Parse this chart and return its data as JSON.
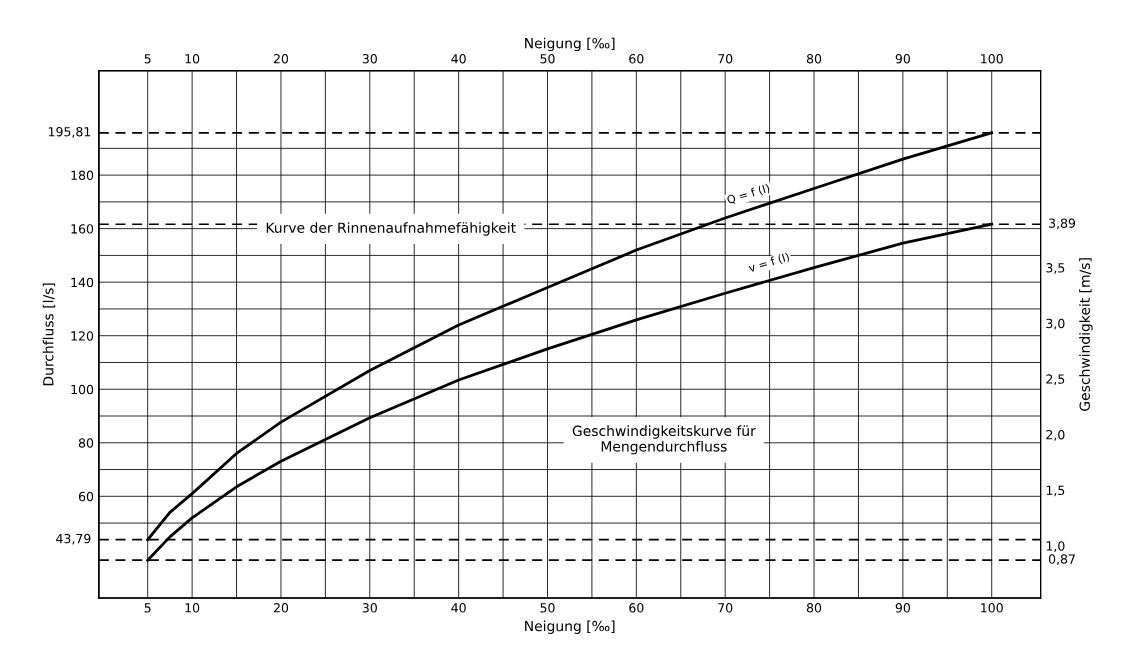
{
  "chart_data": {
    "type": "line",
    "xlabel": "Neigung [‰]",
    "x2label": "Neigung [‰]",
    "ylabel": "Durchfluss [l/s]",
    "y2label": "Geschwindigkeit [m/s]",
    "xlim": [
      -0.5,
      105.5
    ],
    "x2lim": [
      -0.5,
      105.5
    ],
    "xticks": [
      5,
      10,
      {
        "value": 15,
        "label": null
      },
      20,
      {
        "value": 25,
        "label": null
      },
      30,
      {
        "value": 35,
        "label": null
      },
      40,
      {
        "value": 45,
        "label": null
      },
      50,
      {
        "value": 55,
        "label": null
      },
      60,
      {
        "value": 65,
        "label": null
      },
      70,
      {
        "value": 75,
        "label": null
      },
      80,
      {
        "value": 85,
        "label": null
      },
      90,
      {
        "value": 95,
        "label": null
      },
      100
    ],
    "x2ticks": [
      5,
      10,
      {
        "value": 15,
        "label": null
      },
      20,
      {
        "value": 25,
        "label": null
      },
      30,
      {
        "value": 35,
        "label": null
      },
      40,
      {
        "value": 45,
        "label": null
      },
      50,
      {
        "value": 55,
        "label": null
      },
      60,
      {
        "value": 65,
        "label": null
      },
      70,
      {
        "value": 75,
        "label": null
      },
      80,
      {
        "value": 85,
        "label": null
      },
      90,
      {
        "value": 95,
        "label": null
      },
      100
    ],
    "ylim": [
      22,
      219
    ],
    "yticks": [
      {
        "value": 50,
        "label": null
      },
      60,
      {
        "value": 70,
        "label": null
      },
      80,
      {
        "value": 90,
        "label": null
      },
      100,
      {
        "value": 110,
        "label": null
      },
      120,
      {
        "value": 130,
        "label": null
      },
      140,
      {
        "value": 150,
        "label": null
      },
      160,
      {
        "value": 170,
        "label": null
      },
      180,
      {
        "value": 190,
        "label": null
      }
    ],
    "y2lim": [
      0.53,
      5.27
    ],
    "y2ticks": [
      {
        "value": 1.0,
        "label": "1,0"
      },
      {
        "value": 1.5,
        "label": "1,5"
      },
      {
        "value": 2.0,
        "label": "2,0"
      },
      {
        "value": 2.5,
        "label": "2,5"
      },
      {
        "value": 3.0,
        "label": "3,0"
      },
      {
        "value": 3.5,
        "label": "3,5"
      }
    ],
    "grid": true,
    "line_style": "solid",
    "marker": "none",
    "legend": false,
    "series": [
      {
        "color": "#000000",
        "x": [
          5,
          7.5,
          10,
          15,
          20,
          30,
          40,
          50,
          60,
          70,
          80,
          90,
          100
        ],
        "values": [
          43.79,
          54,
          61,
          76,
          87.7,
          107,
          124,
          138,
          152,
          164,
          175,
          186,
          195.81
        ]
      },
      {
        "color": "#000000",
        "axis": "y2",
        "x": [
          5,
          7.5,
          10,
          15,
          20,
          30,
          40,
          50,
          60,
          70,
          80,
          90,
          100
        ],
        "values": [
          0.87,
          1.08,
          1.25,
          1.53,
          1.76,
          2.15,
          2.49,
          2.77,
          3.03,
          3.27,
          3.5,
          3.72,
          3.89
        ]
      }
    ],
    "ref_lines": [
      {
        "axis": "y",
        "value": 195.81,
        "label": "195,81",
        "line_style": "dashed",
        "color": "#000000"
      },
      {
        "axis": "y",
        "value": 43.79,
        "label": "43,79",
        "line_style": "dashed",
        "color": "#000000"
      },
      {
        "axis": "y2",
        "value": 3.89,
        "label": "3,89",
        "line_style": "dashed",
        "color": "#000000"
      },
      {
        "axis": "y2",
        "value": 0.87,
        "label": "0,87",
        "line_style": "dashed",
        "color": "#000000"
      }
    ],
    "annotations": [
      "Kurve der Rinnenaufnahmefähigkeit",
      "Geschwindigkeitskurve für\nMengendurchfluss",
      "Q = f (I)",
      "v = f (I)"
    ]
  }
}
